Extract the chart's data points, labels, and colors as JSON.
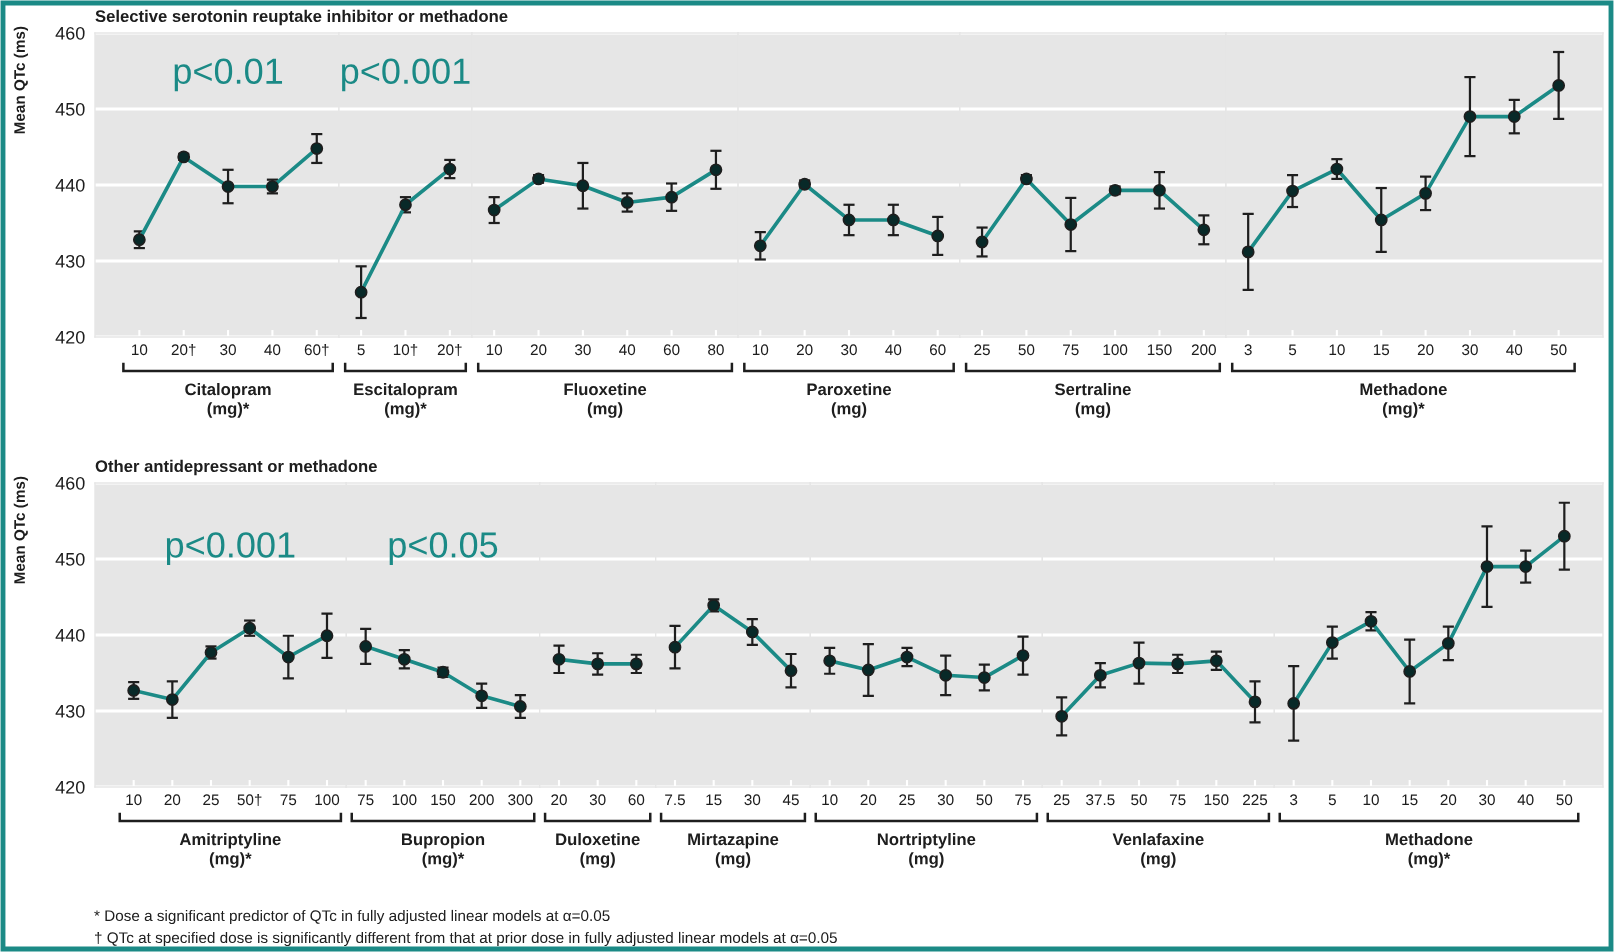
{
  "chart_data": [
    {
      "type": "line",
      "title": "Selective serotonin reuptake inhibitor or methadone",
      "ylabel": "Mean QTc (ms)",
      "xlabel": "Citalopram\n(mg)*",
      "categories": [
        "10",
        "20†",
        "30",
        "40",
        "60†"
      ],
      "series": [
        {
          "color": "#1b8a86",
          "values": [
            432.8,
            443.7,
            439.8,
            439.8,
            444.8
          ],
          "errors": [
            1.1,
            0.4,
            2.2,
            0.9,
            1.9
          ]
        }
      ],
      "ylim": [
        420,
        460
      ],
      "yticks": [
        420,
        430,
        440,
        450,
        460
      ],
      "grid": "y",
      "marker": "circle",
      "line_style": "solid",
      "annotations": [
        "p<0.01"
      ]
    },
    {
      "type": "line",
      "xlabel": "Escitalopram\n(mg)*",
      "categories": [
        "5",
        "10†",
        "20†"
      ],
      "series": [
        {
          "color": "#1b8a86",
          "values": [
            425.9,
            437.4,
            442.1
          ],
          "errors": [
            3.4,
            1.0,
            1.2
          ]
        }
      ],
      "ylim": [
        420,
        460
      ],
      "yticks": [
        420,
        430,
        440,
        450,
        460
      ],
      "tick_labels": "x",
      "grid": "y",
      "marker": "circle",
      "line_style": "solid",
      "annotations": [
        "p<0.001"
      ]
    },
    {
      "type": "line",
      "xlabel": "Fluoxetine\n(mg)",
      "categories": [
        "10",
        "20",
        "30",
        "40",
        "60",
        "80"
      ],
      "series": [
        {
          "color": "#1b8a86",
          "values": [
            436.7,
            440.8,
            439.9,
            437.7,
            438.4,
            442.0
          ],
          "errors": [
            1.7,
            0.5,
            3.0,
            1.2,
            1.8,
            2.5
          ]
        }
      ],
      "ylim": [
        420,
        460
      ],
      "yticks": [
        420,
        430,
        440,
        450,
        460
      ],
      "tick_labels": "x",
      "grid": "y",
      "marker": "circle",
      "line_style": "solid"
    },
    {
      "type": "line",
      "xlabel": "Paroxetine\n(mg)",
      "categories": [
        "10",
        "20",
        "30",
        "40",
        "60"
      ],
      "series": [
        {
          "color": "#1b8a86",
          "values": [
            432.0,
            440.1,
            435.4,
            435.4,
            433.3
          ],
          "errors": [
            1.8,
            0.5,
            2.0,
            2.0,
            2.5
          ]
        }
      ],
      "ylim": [
        420,
        460
      ],
      "yticks": [
        420,
        430,
        440,
        450,
        460
      ],
      "tick_labels": "x",
      "grid": "y",
      "marker": "circle",
      "line_style": "solid"
    },
    {
      "type": "line",
      "xlabel": "Sertraline\n(mg)",
      "categories": [
        "25",
        "50",
        "75",
        "100",
        "150",
        "200"
      ],
      "series": [
        {
          "color": "#1b8a86",
          "values": [
            432.5,
            440.8,
            434.8,
            439.3,
            439.3,
            434.1
          ],
          "errors": [
            1.9,
            0.5,
            3.5,
            0.5,
            2.4,
            1.9
          ]
        }
      ],
      "ylim": [
        420,
        460
      ],
      "yticks": [
        420,
        430,
        440,
        450,
        460
      ],
      "tick_labels": "x",
      "grid": "y",
      "marker": "circle",
      "line_style": "solid"
    },
    {
      "type": "line",
      "xlabel": "Methadone\n(mg)*",
      "categories": [
        "3",
        "5",
        "10",
        "15",
        "20",
        "30",
        "40",
        "50"
      ],
      "series": [
        {
          "color": "#1b8a86",
          "values": [
            431.2,
            439.2,
            442.1,
            435.4,
            438.9,
            449.0,
            449.0,
            453.1
          ],
          "errors": [
            5.0,
            2.1,
            1.3,
            4.2,
            2.2,
            5.2,
            2.2,
            4.4
          ]
        }
      ],
      "ylim": [
        420,
        460
      ],
      "yticks": [
        420,
        430,
        440,
        450,
        460
      ],
      "tick_labels": "x",
      "grid": "y",
      "marker": "circle",
      "line_style": "solid"
    },
    {
      "type": "line",
      "title": "Other antidepressant or methadone",
      "ylabel": "Mean QTc (ms)",
      "xlabel": "Amitriptyline\n(mg)*",
      "categories": [
        "10",
        "20",
        "25",
        "50†",
        "75",
        "100"
      ],
      "series": [
        {
          "color": "#1b8a86",
          "values": [
            432.7,
            431.5,
            437.7,
            440.9,
            437.1,
            439.9
          ],
          "errors": [
            1.1,
            2.4,
            0.8,
            1.0,
            2.8,
            2.9
          ]
        }
      ],
      "ylim": [
        420,
        460
      ],
      "yticks": [
        420,
        430,
        440,
        450,
        460
      ],
      "grid": "y",
      "marker": "circle",
      "line_style": "solid",
      "annotations": [
        "p<0.001"
      ]
    },
    {
      "type": "line",
      "xlabel": "Bupropion\n(mg)*",
      "categories": [
        "75",
        "100",
        "150",
        "200",
        "300"
      ],
      "series": [
        {
          "color": "#1b8a86",
          "values": [
            438.5,
            436.8,
            435.1,
            432.0,
            430.6
          ],
          "errors": [
            2.3,
            1.2,
            0.6,
            1.6,
            1.5
          ]
        }
      ],
      "ylim": [
        420,
        460
      ],
      "yticks": [
        420,
        430,
        440,
        450,
        460
      ],
      "tick_labels": "x",
      "grid": "y",
      "marker": "circle",
      "line_style": "solid",
      "annotations": [
        "p<0.05"
      ]
    },
    {
      "type": "line",
      "xlabel": "Duloxetine\n(mg)",
      "categories": [
        "20",
        "30",
        "60"
      ],
      "series": [
        {
          "color": "#1b8a86",
          "values": [
            436.8,
            436.2,
            436.2
          ],
          "errors": [
            1.8,
            1.4,
            1.2
          ]
        }
      ],
      "ylim": [
        420,
        460
      ],
      "yticks": [
        420,
        430,
        440,
        450,
        460
      ],
      "tick_labels": "x",
      "grid": "y",
      "marker": "circle",
      "line_style": "solid"
    },
    {
      "type": "line",
      "xlabel": "Mirtazapine\n(mg)",
      "categories": [
        "7.5",
        "15",
        "30",
        "45"
      ],
      "series": [
        {
          "color": "#1b8a86",
          "values": [
            438.4,
            443.9,
            440.4,
            435.3
          ],
          "errors": [
            2.8,
            0.8,
            1.7,
            2.2
          ]
        }
      ],
      "ylim": [
        420,
        460
      ],
      "yticks": [
        420,
        430,
        440,
        450,
        460
      ],
      "tick_labels": "x",
      "grid": "y",
      "marker": "circle",
      "line_style": "solid"
    },
    {
      "type": "line",
      "xlabel": "Nortriptyline\n(mg)",
      "categories": [
        "10",
        "20",
        "25",
        "30",
        "50",
        "75"
      ],
      "series": [
        {
          "color": "#1b8a86",
          "values": [
            436.6,
            435.4,
            437.1,
            434.7,
            434.4,
            437.3
          ],
          "errors": [
            1.7,
            3.4,
            1.2,
            2.6,
            1.7,
            2.5
          ]
        }
      ],
      "ylim": [
        420,
        460
      ],
      "yticks": [
        420,
        430,
        440,
        450,
        460
      ],
      "tick_labels": "x",
      "grid": "y",
      "marker": "circle",
      "line_style": "solid"
    },
    {
      "type": "line",
      "xlabel": "Venlafaxine\n(mg)",
      "categories": [
        "25",
        "37.5",
        "50",
        "75",
        "150",
        "225"
      ],
      "series": [
        {
          "color": "#1b8a86",
          "values": [
            429.3,
            434.7,
            436.3,
            436.2,
            436.6,
            431.2
          ],
          "errors": [
            2.5,
            1.6,
            2.7,
            1.2,
            1.2,
            2.7
          ]
        }
      ],
      "ylim": [
        420,
        460
      ],
      "yticks": [
        420,
        430,
        440,
        450,
        460
      ],
      "tick_labels": "x",
      "grid": "y",
      "marker": "circle",
      "line_style": "solid"
    },
    {
      "type": "line",
      "xlabel": "Methadone\n(mg)*",
      "categories": [
        "3",
        "5",
        "10",
        "15",
        "20",
        "30",
        "40",
        "50"
      ],
      "series": [
        {
          "color": "#1b8a86",
          "values": [
            431.0,
            439.0,
            441.8,
            435.2,
            438.9,
            449.0,
            449.0,
            453.0
          ],
          "errors": [
            4.9,
            2.1,
            1.2,
            4.2,
            2.2,
            5.3,
            2.1,
            4.4
          ]
        }
      ],
      "ylim": [
        420,
        460
      ],
      "yticks": [
        420,
        430,
        440,
        450,
        460
      ],
      "tick_labels": "x",
      "grid": "y",
      "marker": "circle",
      "line_style": "solid"
    },
    {
      "type": "other",
      "annotations": [
        "* Dose a significant predictor of QTc in fully adjusted linear models at α=0.05",
        "† QTc at specified dose is significantly different from that at prior dose in fully adjusted linear models at α=0.05"
      ]
    }
  ]
}
